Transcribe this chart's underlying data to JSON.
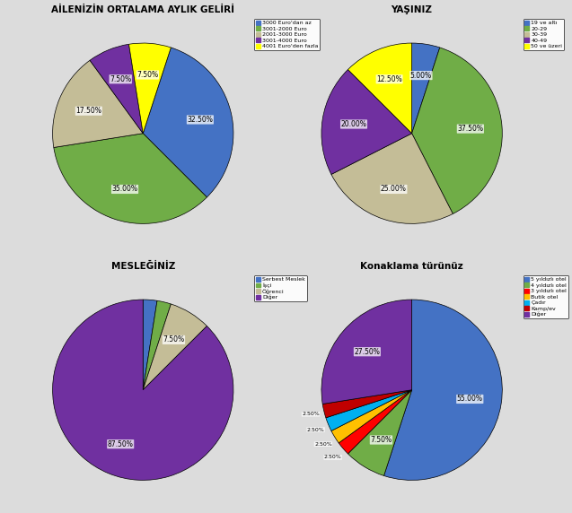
{
  "chart1": {
    "title": "AİLENİZİN ORTALAMA AYLIK GELİRİ",
    "labels": [
      "3000 Euro'dan az",
      "3001-2000 Euro",
      "2001-3000 Euro",
      "3001-4000 Euro",
      "4001 Euro'den fazla"
    ],
    "values": [
      32.5,
      35.0,
      17.5,
      7.5,
      7.5
    ],
    "colors": [
      "#4472C4",
      "#70AD47",
      "#C4BD97",
      "#7030A0",
      "#FFFF00"
    ],
    "startangle": 72,
    "counterclock": false
  },
  "chart2": {
    "title": "YAŞINIZ",
    "labels": [
      "19 ve altı",
      "20-29",
      "30-39",
      "40-49",
      "50 ve üzeri"
    ],
    "values": [
      5.0,
      37.5,
      25.0,
      20.0,
      12.5
    ],
    "colors": [
      "#4472C4",
      "#70AD47",
      "#C4BD97",
      "#7030A0",
      "#FFFF00"
    ],
    "startangle": 90,
    "counterclock": false
  },
  "chart3": {
    "title": "MESLEĞİNİZ",
    "labels": [
      "Serbest Meslek",
      "İşçi",
      "Öğrenci",
      "Diğer"
    ],
    "values": [
      2.5,
      2.5,
      7.5,
      87.5
    ],
    "colors": [
      "#4472C4",
      "#70AD47",
      "#C4BD97",
      "#7030A0"
    ],
    "startangle": 90,
    "counterclock": false
  },
  "chart4": {
    "title": "Konaklama türünüz",
    "labels": [
      "5 yıldızlı otel",
      "4 yıldızlı otel",
      "3 yıldızlı otel",
      "Butik otel",
      "Çadır",
      "Kamp/ev",
      "Diğer"
    ],
    "values": [
      55.0,
      7.5,
      2.5,
      2.5,
      2.5,
      2.5,
      27.5
    ],
    "colors": [
      "#4472C4",
      "#70AD47",
      "#FF0000",
      "#FFC000",
      "#00B0F0",
      "#C00000",
      "#7030A0"
    ],
    "startangle": 90,
    "counterclock": false
  },
  "bg_color": "#DCDCDC",
  "title_fontsize": 7.5,
  "label_fontsize": 5.5,
  "legend_fontsize": 4.5
}
